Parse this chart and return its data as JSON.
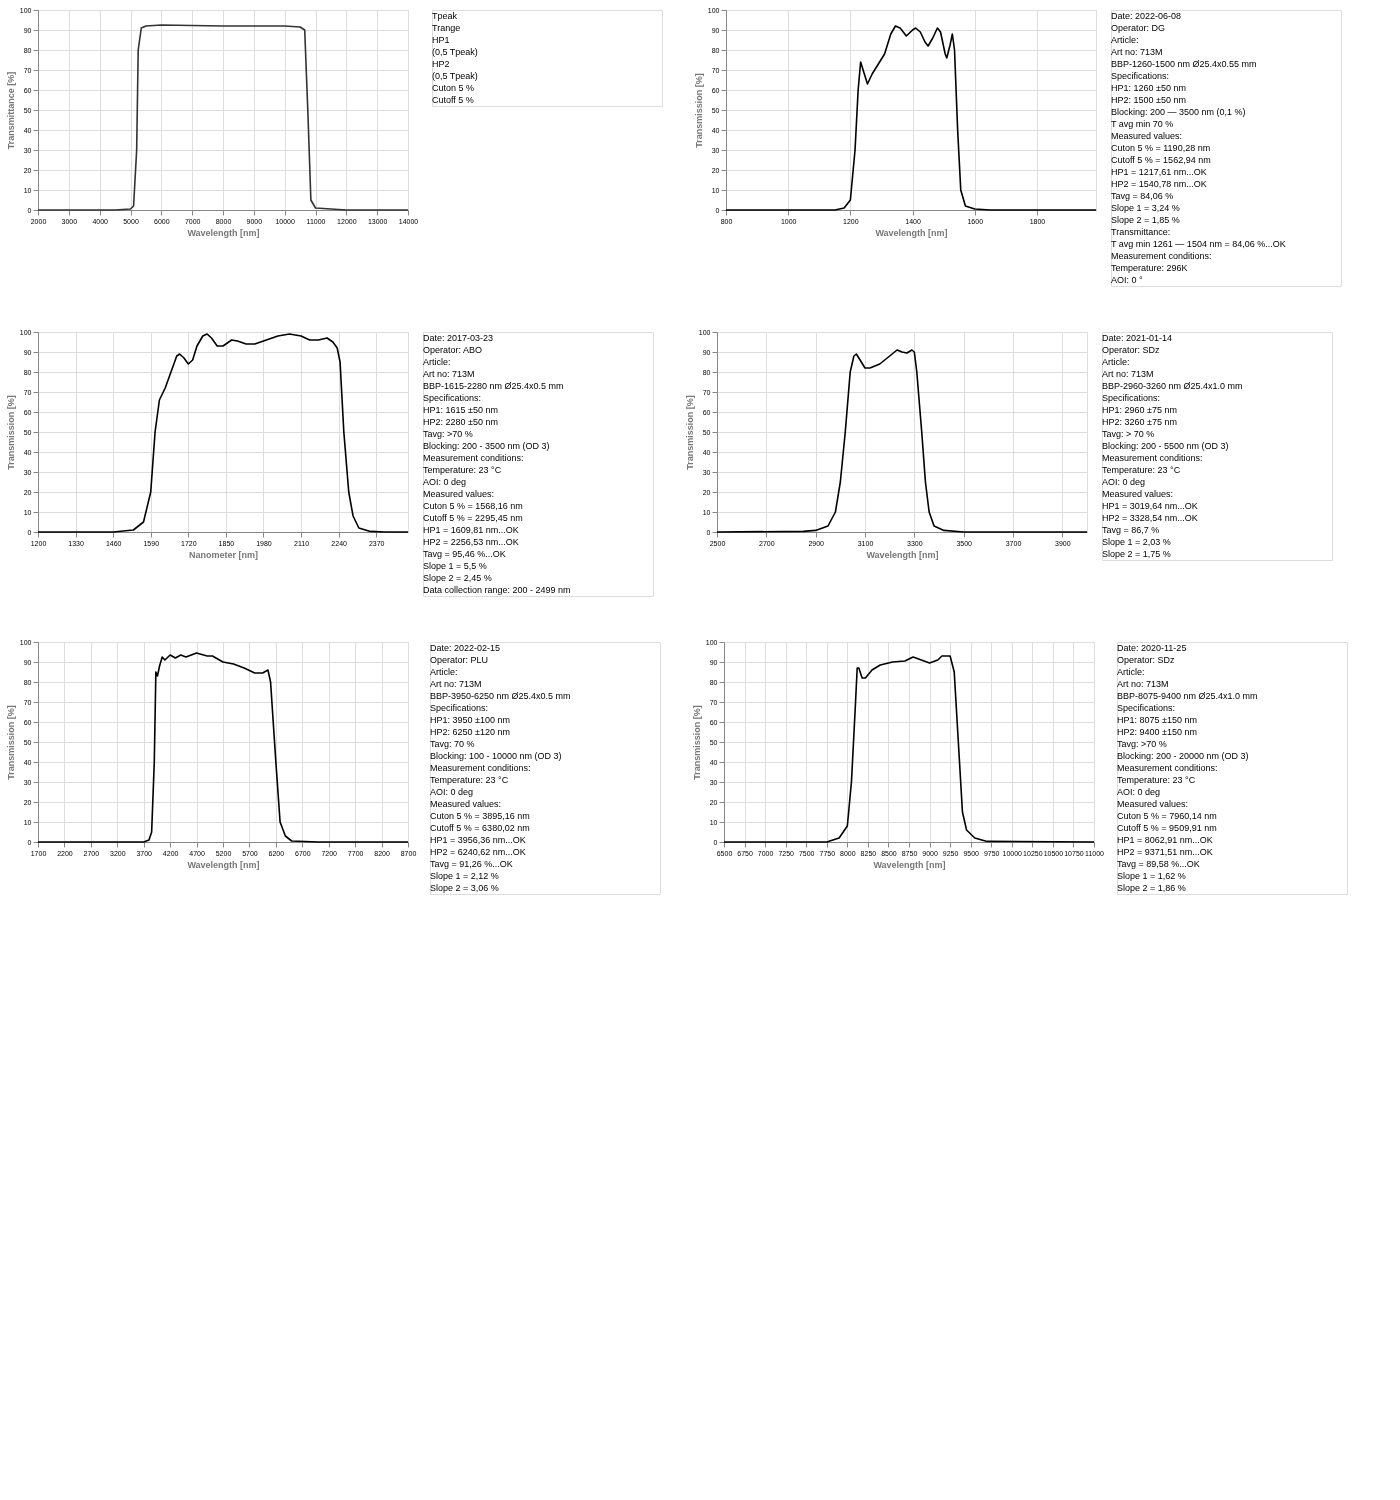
{
  "chart_data": [
    {
      "type": "line",
      "xlabel": "Wavelength [nm]",
      "ylabel": "Transmittance [%]",
      "xlim": [
        2000,
        14000
      ],
      "xticks": [
        2000,
        3000,
        4000,
        5000,
        6000,
        7000,
        8000,
        9000,
        10000,
        11000,
        12000,
        13000,
        14000
      ],
      "ylim": [
        0,
        100
      ],
      "yticks": [
        0,
        10,
        20,
        30,
        40,
        50,
        60,
        70,
        80,
        90,
        100
      ],
      "grid": true,
      "series": [
        {
          "color": "#333333",
          "x": [
            2000,
            4500,
            5000,
            5100,
            5200,
            5250,
            5350,
            5500,
            6000,
            8000,
            10000,
            10500,
            10650,
            10750,
            10850,
            11000,
            12000,
            14000
          ],
          "values": [
            0,
            0,
            0.5,
            2,
            30,
            80,
            91,
            92,
            92.5,
            92,
            92,
            91.5,
            90,
            50,
            5,
            1,
            0,
            0
          ]
        }
      ],
      "annotations": [
        "Tpeak",
        "Trange",
        "HP1",
        "(0,5 Tpeak)",
        "HP2",
        "(0,5 Tpeak)",
        "Cuton 5 %",
        "Cutoff 5 %"
      ]
    },
    {
      "type": "line",
      "xlabel": "Wavelength [nm]",
      "ylabel": "Transmission [%]",
      "xlim": [
        800,
        1990
      ],
      "xticks": [
        800,
        1000,
        1200,
        1400,
        1600,
        1800
      ],
      "ylim": [
        0,
        100
      ],
      "yticks": [
        0,
        10,
        20,
        30,
        40,
        50,
        60,
        70,
        80,
        90,
        100
      ],
      "grid": true,
      "series": [
        {
          "color": "#000000",
          "x": [
            800,
            1150,
            1180,
            1200,
            1215,
            1225,
            1233,
            1245,
            1255,
            1270,
            1290,
            1310,
            1330,
            1345,
            1360,
            1380,
            1400,
            1410,
            1425,
            1440,
            1450,
            1465,
            1480,
            1490,
            1505,
            1510,
            1520,
            1528,
            1535,
            1545,
            1555,
            1570,
            1600,
            1650,
            1990
          ],
          "values": [
            0,
            0,
            1,
            5,
            30,
            60,
            74,
            68,
            63,
            68,
            73,
            78,
            88,
            92,
            91,
            87,
            90,
            91,
            89,
            84,
            82,
            86,
            91,
            89,
            78,
            76,
            82,
            88,
            80,
            40,
            10,
            2,
            0.5,
            0,
            0
          ]
        }
      ],
      "annotations": [
        "Date:   2022-06-08",
        "Operator: DG",
        "Article:",
        "Art no: 713M",
        "BBP-1260-1500 nm Ø25.4x0.55 mm",
        "Specifications:",
        "HP1: 1260 ±50 nm",
        "HP2: 1500 ±50 nm",
        "Blocking: 200 — 3500 nm (0,1 %)",
        "T avg min 70 %",
        "Measured values:",
        "Cuton 5 % = 1190,28 nm",
        "Cutoff 5 % = 1562,94 nm",
        "HP1 = 1217,61 nm...OK",
        "HP2 = 1540,78 nm...OK",
        "Tavg = 84,06 %",
        "Slope 1 = 3,24 %",
        "Slope 2 = 1,85 %",
        "Transmittance:",
        "T avg min 1261 — 1504 nm = 84,06 %...OK",
        "Measurement conditions:",
        "Temperature:  296K",
        "AOI: 0 °"
      ]
    },
    {
      "type": "line",
      "xlabel": "Nanometer [nm]",
      "ylabel": "Transmission [%]",
      "xlim": [
        1200,
        2480
      ],
      "xticks": [
        1200,
        1330,
        1460,
        1590,
        1720,
        1850,
        1980,
        2110,
        2240,
        2370
      ],
      "ylim": [
        0,
        100
      ],
      "yticks": [
        0,
        10,
        20,
        30,
        40,
        50,
        60,
        70,
        80,
        90,
        100
      ],
      "grid": true,
      "series": [
        {
          "color": "#000000",
          "x": [
            1200,
            1460,
            1530,
            1565,
            1590,
            1605,
            1620,
            1640,
            1660,
            1680,
            1690,
            1705,
            1720,
            1735,
            1750,
            1770,
            1785,
            1800,
            1820,
            1840,
            1870,
            1890,
            1920,
            1950,
            1990,
            2030,
            2070,
            2110,
            2140,
            2170,
            2200,
            2220,
            2235,
            2245,
            2258,
            2275,
            2290,
            2310,
            2350,
            2400,
            2480
          ],
          "values": [
            0,
            0,
            1,
            5,
            20,
            50,
            66,
            72,
            80,
            88,
            89,
            87,
            84,
            86,
            93,
            98,
            99,
            97,
            93,
            93,
            96,
            95.5,
            94,
            94,
            96,
            98,
            99,
            98,
            96,
            96,
            97,
            95,
            92,
            85,
            50,
            20,
            8,
            2,
            0.3,
            0,
            0
          ]
        }
      ],
      "annotations": [
        "Date:   2017-03-23",
        "Operator: ABO",
        "Article:",
        "Art no: 713M",
        "BBP-1615-2280 nm Ø25.4x0.5 mm",
        "Specifications:",
        "HP1: 1615 ±50 nm",
        "HP2: 2280 ±50 nm",
        "Tavg: >70 %",
        "Blocking: 200 - 3500 nm (OD 3)",
        "Measurement conditions:",
        "Temperature:   23  °C",
        "AOI:   0 deg",
        "Measured values:",
        "Cuton 5 % = 1568,16 nm",
        "Cutoff 5 % = 2295,45 nm",
        "HP1 = 1609,81 nm...OK",
        "HP2 = 2256,53 nm...OK",
        "Tavg = 95,46 %...OK",
        "Slope 1 = 5,5 %",
        "Slope 2 = 2,45 %",
        "Data collection range: 200 - 2499 nm"
      ]
    },
    {
      "type": "line",
      "xlabel": "Wavelength [nm]",
      "ylabel": "Transmission [%]",
      "xlim": [
        2500,
        4000
      ],
      "xticks": [
        2500,
        2700,
        2900,
        3100,
        3300,
        3500,
        3700,
        3900
      ],
      "ylim": [
        0,
        100
      ],
      "yticks": [
        0,
        10,
        20,
        30,
        40,
        50,
        60,
        70,
        80,
        90,
        100
      ],
      "grid": true,
      "series": [
        {
          "color": "#000000",
          "x": [
            2500,
            2850,
            2900,
            2950,
            2980,
            3000,
            3020,
            3040,
            3055,
            3065,
            3080,
            3100,
            3120,
            3160,
            3200,
            3230,
            3250,
            3270,
            3290,
            3300,
            3310,
            3330,
            3345,
            3360,
            3380,
            3420,
            3500,
            4000
          ],
          "values": [
            0,
            0.3,
            0.8,
            3,
            10,
            25,
            50,
            80,
            88,
            89,
            86,
            82,
            82,
            84,
            88,
            91,
            90,
            89.5,
            91,
            90,
            80,
            50,
            25,
            10,
            3,
            0.8,
            0,
            0
          ]
        }
      ],
      "annotations": [
        "Date:   2021-01-14",
        "Operator: SDz",
        "Article:",
        "Art no: 713M",
        "BBP-2960-3260 nm Ø25.4x1.0 mm",
        "Specifications:",
        "HP1: 2960 ±75 nm",
        "HP2: 3260 ±75 nm",
        "Tavg: > 70 %",
        "Blocking: 200 - 5500 nm (OD 3)",
        "Measurement conditions:",
        "Temperature:   23 °C",
        "AOI:   0 deg",
        "Measured values:",
        "HP1 = 3019,64 nm...OK",
        "HP2 = 3328,54 nm...OK",
        "Tavg = 86,7 %",
        "Slope 1 = 2,03 %",
        "Slope 2 = 1,75 %"
      ]
    },
    {
      "type": "line",
      "xlabel": "Wavelength [nm]",
      "ylabel": "Transmission [%]",
      "xlim": [
        1700,
        8700
      ],
      "xticks": [
        1700,
        2200,
        2700,
        3200,
        3700,
        4200,
        4700,
        5200,
        5700,
        6200,
        6700,
        7200,
        7700,
        8200,
        8700
      ],
      "ylim": [
        0,
        100
      ],
      "yticks": [
        0,
        10,
        20,
        30,
        40,
        50,
        60,
        70,
        80,
        90,
        100
      ],
      "grid": true,
      "series": [
        {
          "color": "#000000",
          "x": [
            1700,
            3700,
            3800,
            3850,
            3900,
            3930,
            3960,
            4000,
            4050,
            4100,
            4200,
            4300,
            4400,
            4500,
            4700,
            4900,
            5000,
            5200,
            5400,
            5600,
            5800,
            5950,
            6050,
            6100,
            6200,
            6280,
            6380,
            6500,
            7000,
            8700
          ],
          "values": [
            0,
            0,
            1,
            5,
            40,
            85,
            83,
            88,
            92.5,
            91,
            93.5,
            92,
            93.5,
            92.5,
            94.5,
            93,
            93,
            90,
            89,
            87,
            84.5,
            84.5,
            86,
            80,
            40,
            10,
            3,
            0.5,
            0,
            0
          ]
        }
      ],
      "annotations": [
        "Date:   2022-02-15",
        "Operator: PLU",
        "Article:",
        "Art no: 713M",
        "BBP-3950-6250 nm Ø25.4x0.5 mm",
        "Specifications:",
        "HP1: 3950 ±100 nm",
        "HP2: 6250 ±120 nm",
        "Tavg: 70 %",
        "Blocking: 100 - 10000 nm (OD 3)",
        "Measurement conditions:",
        "Temperature:   23 °C",
        "AOI:   0 deg",
        "Measured values:",
        "Cuton 5 % = 3895,16 nm",
        "Cutoff 5 % = 6380,02 nm",
        "HP1 = 3956,36 nm...OK",
        "HP2 = 6240,62 nm...OK",
        "Tavg = 91,26 %...OK",
        "Slope 1 = 2,12 %",
        "Slope 2 = 3,06 %"
      ]
    },
    {
      "type": "line",
      "xlabel": "Wavelength [nm]",
      "ylabel": "Transmission [%]",
      "xlim": [
        6500,
        11000
      ],
      "xticks": [
        6500,
        6750,
        7000,
        7250,
        7500,
        7750,
        8000,
        8250,
        8500,
        8750,
        9000,
        9250,
        9500,
        9750,
        10000,
        10250,
        10500,
        10750,
        11000
      ],
      "ylim": [
        0,
        100
      ],
      "yticks": [
        0,
        10,
        20,
        30,
        40,
        50,
        60,
        70,
        80,
        90,
        100
      ],
      "grid": true,
      "series": [
        {
          "color": "#000000",
          "x": [
            6500,
            7750,
            7900,
            8000,
            8050,
            8100,
            8120,
            8140,
            8180,
            8220,
            8300,
            8400,
            8550,
            8700,
            8800,
            8900,
            9000,
            9100,
            9150,
            9250,
            9300,
            9350,
            9400,
            9450,
            9550,
            9700,
            11000
          ],
          "values": [
            0,
            0,
            2,
            8,
            30,
            70,
            87,
            87,
            82,
            82,
            86,
            88.5,
            90,
            90.5,
            92.5,
            91,
            89.5,
            91,
            93,
            93,
            85,
            50,
            15,
            6,
            2,
            0.3,
            0
          ]
        }
      ],
      "annotations": [
        "Date:   2020-11-25",
        "Operator: SDz",
        "Article:",
        "Art no: 713M",
        "BBP-8075-9400 nm Ø25.4x1.0 mm",
        "Specifications:",
        "HP1: 8075 ±150 nm",
        "HP2: 9400 ±150 nm",
        "Tavg: >70 %",
        "Blocking: 200 - 20000 nm (OD 3)",
        "Measurement conditions:",
        "Temperature:   23 °C",
        "AOI:   0 deg",
        "Measured values:",
        "Cuton 5 % = 7960,14 nm",
        "Cutoff 5 % = 9509,91 nm",
        "HP1 = 8062,91 nm...OK",
        "HP2 = 9371,51 nm...OK",
        "Tavg = 89,58 %...OK",
        "Slope 1 = 1,62 %",
        "Slope 2 = 1,86 %"
      ]
    }
  ]
}
